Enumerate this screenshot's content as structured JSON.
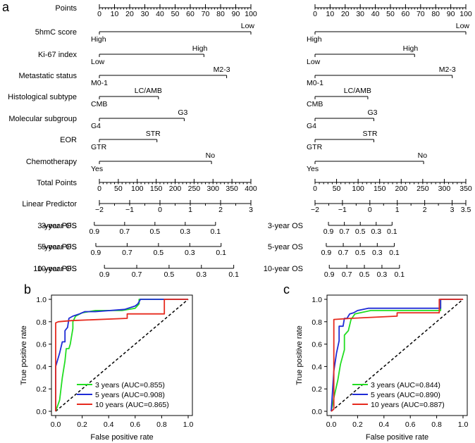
{
  "panel_labels": {
    "a": "a",
    "b": "b",
    "c": "c"
  },
  "chart_data": [
    {
      "type": "nomogram",
      "panel": "a",
      "outcome": "PFS",
      "rows": [
        {
          "label": "Points",
          "kind": "axis",
          "ticks": [
            0,
            10,
            20,
            30,
            40,
            50,
            60,
            70,
            80,
            90,
            100
          ],
          "tick_labels": [
            "0",
            "10",
            "20",
            "30",
            "40",
            "50",
            "60",
            "70",
            "80",
            "90",
            "100"
          ]
        },
        {
          "label": "5hmC score",
          "kind": "predictor",
          "point_range": [
            0,
            100
          ],
          "levels": [
            {
              "text": "High",
              "points": 0,
              "side": "below"
            },
            {
              "text": "Low",
              "points": 100,
              "side": "above"
            }
          ]
        },
        {
          "label": "Ki-67 index",
          "kind": "predictor",
          "point_range": [
            0,
            69
          ],
          "levels": [
            {
              "text": "Low",
              "points": 0,
              "side": "below"
            },
            {
              "text": "High",
              "points": 69,
              "side": "above"
            }
          ]
        },
        {
          "label": "Metastatic status",
          "kind": "predictor",
          "point_range": [
            0,
            84
          ],
          "levels": [
            {
              "text": "M0-1",
              "points": 0,
              "side": "below"
            },
            {
              "text": "M2-3",
              "points": 84,
              "side": "above"
            }
          ]
        },
        {
          "label": "Histological subtype",
          "kind": "predictor",
          "point_range": [
            0,
            39
          ],
          "levels": [
            {
              "text": "CMB",
              "points": 0,
              "side": "below"
            },
            {
              "text": "LC/AMB",
              "points": 39,
              "side": "above"
            }
          ]
        },
        {
          "label": "Molecular subgroup",
          "kind": "predictor",
          "point_range": [
            0,
            56
          ],
          "levels": [
            {
              "text": "G4",
              "points": 0,
              "side": "below"
            },
            {
              "text": "G3",
              "points": 56,
              "side": "above"
            }
          ]
        },
        {
          "label": "EOR",
          "kind": "predictor",
          "point_range": [
            0,
            38
          ],
          "levels": [
            {
              "text": "GTR",
              "points": 0,
              "side": "below"
            },
            {
              "text": "STR",
              "points": 38,
              "side": "above"
            }
          ]
        },
        {
          "label": "Chemotherapy",
          "kind": "predictor",
          "point_range": [
            0,
            74
          ],
          "levels": [
            {
              "text": "Yes",
              "points": 0,
              "side": "below"
            },
            {
              "text": "No",
              "points": 74,
              "side": "above"
            }
          ]
        },
        {
          "label": "Total Points",
          "kind": "axis",
          "ticks": [
            0,
            50,
            100,
            150,
            200,
            250,
            300,
            350,
            400
          ],
          "tick_labels": [
            "0",
            "50",
            "100",
            "150",
            "200",
            "250",
            "300",
            "350",
            "400"
          ]
        },
        {
          "label": "Linear Predictor",
          "kind": "lp",
          "ticks": [
            -2,
            -1,
            0,
            1,
            2,
            3
          ],
          "tick_labels": [
            "−2",
            "−1",
            "0",
            "1",
            "2",
            "3"
          ]
        },
        {
          "label": "3-year PFS",
          "kind": "prob",
          "ticks": [
            0.9,
            0.7,
            0.5,
            0.3,
            0.1
          ],
          "tick_labels": [
            "0.9",
            "0.7",
            "0.5",
            "0.3",
            "0.1"
          ]
        },
        {
          "label": "5-year PFS",
          "kind": "prob",
          "ticks": [
            0.9,
            0.7,
            0.5,
            0.3,
            0.1
          ],
          "tick_labels": [
            "0.9",
            "0.7",
            "0.5",
            "0.3",
            "0.1"
          ]
        },
        {
          "label": "10-year PFS",
          "kind": "prob",
          "ticks": [
            0.9,
            0.7,
            0.5,
            0.3,
            0.1
          ],
          "tick_labels": [
            "0.9",
            "0.7",
            "0.5",
            "0.3",
            "0.1"
          ]
        }
      ]
    },
    {
      "type": "nomogram",
      "panel": "a",
      "outcome": "OS",
      "rows": [
        {
          "label": "",
          "kind": "axis",
          "ticks": [
            0,
            10,
            20,
            30,
            40,
            50,
            60,
            70,
            80,
            90,
            100
          ],
          "tick_labels": [
            "0",
            "10",
            "20",
            "30",
            "40",
            "50",
            "60",
            "70",
            "80",
            "90",
            "100"
          ]
        },
        {
          "label": "",
          "kind": "predictor",
          "point_range": [
            0,
            100
          ],
          "levels": [
            {
              "text": "High",
              "points": 0,
              "side": "below"
            },
            {
              "text": "Low",
              "points": 100,
              "side": "above"
            }
          ]
        },
        {
          "label": "",
          "kind": "predictor",
          "point_range": [
            0,
            66
          ],
          "levels": [
            {
              "text": "Low",
              "points": 0,
              "side": "below"
            },
            {
              "text": "High",
              "points": 66,
              "side": "above"
            }
          ]
        },
        {
          "label": "",
          "kind": "predictor",
          "point_range": [
            0,
            91
          ],
          "levels": [
            {
              "text": "M0-1",
              "points": 0,
              "side": "below"
            },
            {
              "text": "M2-3",
              "points": 91,
              "side": "above"
            }
          ]
        },
        {
          "label": "",
          "kind": "predictor",
          "point_range": [
            0,
            35
          ],
          "levels": [
            {
              "text": "CMB",
              "points": 0,
              "side": "below"
            },
            {
              "text": "LC/AMB",
              "points": 35,
              "side": "above"
            }
          ]
        },
        {
          "label": "",
          "kind": "predictor",
          "point_range": [
            0,
            39
          ],
          "levels": [
            {
              "text": "G4",
              "points": 0,
              "side": "below"
            },
            {
              "text": "G3",
              "points": 39,
              "side": "above"
            }
          ]
        },
        {
          "label": "",
          "kind": "predictor",
          "point_range": [
            0,
            39
          ],
          "levels": [
            {
              "text": "GTR",
              "points": 0,
              "side": "below"
            },
            {
              "text": "STR",
              "points": 39,
              "side": "above"
            }
          ]
        },
        {
          "label": "",
          "kind": "predictor",
          "point_range": [
            0,
            72
          ],
          "levels": [
            {
              "text": "Yes",
              "points": 0,
              "side": "below"
            },
            {
              "text": "No",
              "points": 72,
              "side": "above"
            }
          ]
        },
        {
          "label": "",
          "kind": "axis",
          "ticks": [
            0,
            50,
            100,
            150,
            200,
            250,
            300,
            350
          ],
          "tick_labels": [
            "0",
            "50",
            "100",
            "150",
            "200",
            "250",
            "300",
            "350"
          ]
        },
        {
          "label": "",
          "kind": "lp",
          "ticks": [
            -2,
            -1,
            0,
            1,
            2,
            3,
            3.5
          ],
          "tick_labels": [
            "−2",
            "−1",
            "0",
            "1",
            "2",
            "3",
            "3.5"
          ]
        },
        {
          "label": "3-year OS",
          "kind": "prob",
          "ticks": [
            0.9,
            0.7,
            0.5,
            0.3,
            0.1
          ],
          "tick_labels": [
            "0.9",
            "0.7",
            "0.5",
            "0.3",
            "0.1"
          ]
        },
        {
          "label": "5-year OS",
          "kind": "prob",
          "ticks": [
            0.9,
            0.7,
            0.5,
            0.3,
            0.1
          ],
          "tick_labels": [
            "0.9",
            "0.7",
            "0.5",
            "0.3",
            "0.1"
          ]
        },
        {
          "label": "10-year OS",
          "kind": "prob",
          "ticks": [
            0.9,
            0.7,
            0.5,
            0.3,
            0.1
          ],
          "tick_labels": [
            "0.9",
            "0.7",
            "0.5",
            "0.3",
            "0.1"
          ]
        }
      ]
    },
    {
      "type": "line",
      "panel": "b",
      "xlabel": "False positive rate",
      "ylabel": "True positive rate",
      "xlim": [
        0,
        1
      ],
      "ylim": [
        0,
        1
      ],
      "xticks": [
        "0.0",
        "0.2",
        "0.4",
        "0.6",
        "0.8",
        "1.0"
      ],
      "yticks": [
        "0.0",
        "0.2",
        "0.4",
        "0.6",
        "0.8",
        "1.0"
      ],
      "legend_position": "bottom-right",
      "series": [
        {
          "name": "3 years (AUC=0.855)",
          "color": "#22dd22",
          "x": [
            0,
            0.03,
            0.05,
            0.07,
            0.08,
            0.1,
            0.11,
            0.13,
            0.13,
            0.15,
            0.2,
            0.3,
            0.5,
            0.6,
            0.63,
            0.63,
            1.0
          ],
          "y": [
            0,
            0.1,
            0.3,
            0.45,
            0.56,
            0.56,
            0.6,
            0.74,
            0.8,
            0.85,
            0.88,
            0.9,
            0.9,
            0.92,
            0.96,
            1.0,
            1.0
          ]
        },
        {
          "name": "5 years (AUC=0.908)",
          "color": "#1e2bd6",
          "x": [
            0,
            0,
            0.03,
            0.05,
            0.07,
            0.07,
            0.09,
            0.1,
            0.13,
            0.18,
            0.22,
            0.3,
            0.52,
            0.6,
            0.62,
            0.64,
            1.0
          ],
          "y": [
            0,
            0.4,
            0.52,
            0.62,
            0.62,
            0.72,
            0.75,
            0.83,
            0.85,
            0.87,
            0.89,
            0.89,
            0.91,
            0.94,
            0.96,
            1.0,
            1.0
          ]
        },
        {
          "name": "10 years (AUC=0.865)",
          "color": "#e62a1e",
          "x": [
            0,
            0,
            0.02,
            0.12,
            0.54,
            0.54,
            0.82,
            0.82,
            1.0
          ],
          "y": [
            0,
            0.79,
            0.8,
            0.81,
            0.83,
            0.87,
            0.87,
            1.0,
            1.0
          ]
        }
      ],
      "reference_line": {
        "x": [
          0,
          1
        ],
        "y": [
          0,
          1
        ],
        "style": "dashed"
      }
    },
    {
      "type": "line",
      "panel": "c",
      "xlabel": "False positive rate",
      "ylabel": "True positive rate",
      "xlim": [
        0,
        1
      ],
      "ylim": [
        0,
        1
      ],
      "xticks": [
        "0.0",
        "0.2",
        "0.4",
        "0.6",
        "0.8",
        "1.0"
      ],
      "yticks": [
        "0.0",
        "0.2",
        "0.4",
        "0.6",
        "0.8",
        "1.0"
      ],
      "legend_position": "bottom-right",
      "series": [
        {
          "name": "3 years (AUC=0.844)",
          "color": "#22dd22",
          "x": [
            0,
            0.02,
            0.05,
            0.07,
            0.1,
            0.1,
            0.13,
            0.15,
            0.18,
            0.22,
            0.3,
            0.5,
            0.83,
            0.83,
            1.0
          ],
          "y": [
            0,
            0.12,
            0.28,
            0.42,
            0.55,
            0.68,
            0.72,
            0.82,
            0.87,
            0.88,
            0.9,
            0.9,
            0.9,
            1.0,
            1.0
          ]
        },
        {
          "name": "5 years (AUC=0.890)",
          "color": "#1e2bd6",
          "x": [
            0,
            0.02,
            0.04,
            0.06,
            0.06,
            0.09,
            0.1,
            0.12,
            0.14,
            0.17,
            0.2,
            0.28,
            0.5,
            0.83,
            0.83,
            1.0
          ],
          "y": [
            0,
            0.36,
            0.52,
            0.63,
            0.76,
            0.76,
            0.83,
            0.83,
            0.87,
            0.88,
            0.9,
            0.92,
            0.92,
            0.92,
            1.0,
            1.0
          ]
        },
        {
          "name": "10 years (AUC=0.887)",
          "color": "#e62a1e",
          "x": [
            0,
            0.02,
            0.02,
            0.15,
            0.5,
            0.5,
            0.82,
            0.82,
            1.0
          ],
          "y": [
            0,
            0.02,
            0.82,
            0.83,
            0.85,
            0.88,
            0.88,
            1.0,
            1.0
          ]
        }
      ],
      "reference_line": {
        "x": [
          0,
          1
        ],
        "y": [
          0,
          1
        ],
        "style": "dashed"
      }
    }
  ]
}
